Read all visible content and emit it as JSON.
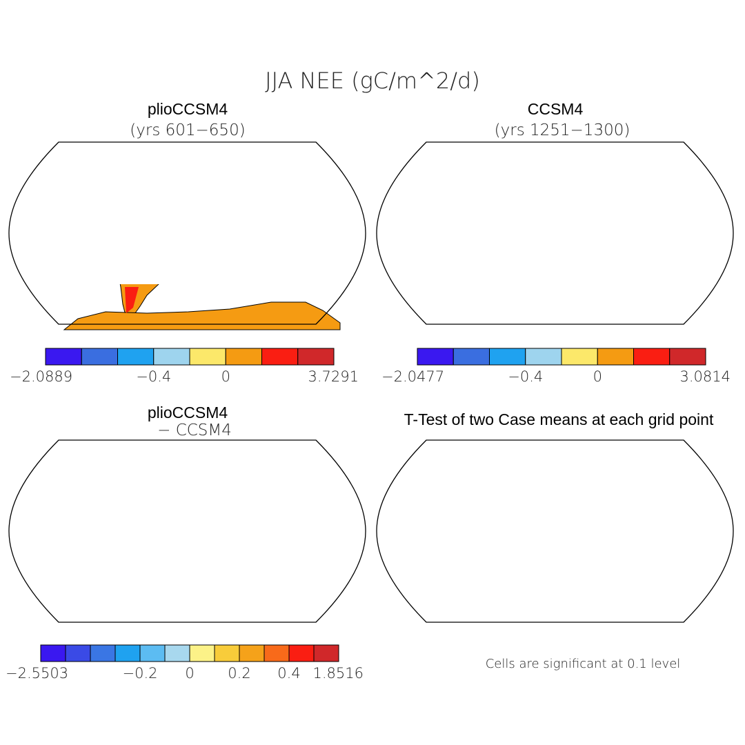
{
  "figure": {
    "title": "JJA NEE (gC/m^2/d)"
  },
  "panels": [
    {
      "title": "plioCCSM4",
      "subtitle": "(yrs 601−650)",
      "map_type": "nee"
    },
    {
      "title": "CCSM4",
      "subtitle": "(yrs 1251−1300)",
      "map_type": "nee"
    },
    {
      "title": "plioCCSM4",
      "subtitle": "− CCSM4",
      "map_type": "difference"
    },
    {
      "title": "T-Test of two Case means at each grid point",
      "subtitle": "",
      "map_type": "significance",
      "note": "Cells are significant at 0.1 level"
    }
  ],
  "colorbars": [
    {
      "colors": [
        "#3a18f0",
        "#3a6ee0",
        "#1fa2f0",
        "#9ed4ee",
        "#fce86a",
        "#f59b12",
        "#fa1e12",
        "#d0282a"
      ],
      "labels": [
        {
          "text": "−2.0889",
          "boundary": 0
        },
        {
          "text": "−0.4",
          "boundary": 3
        },
        {
          "text": "0",
          "boundary": 5
        },
        {
          "text": "3.7291",
          "boundary": 8
        }
      ]
    },
    {
      "colors": [
        "#3a18f0",
        "#3a6ee0",
        "#1fa2f0",
        "#9ed4ee",
        "#fce86a",
        "#f59b12",
        "#fa1e12",
        "#d0282a"
      ],
      "labels": [
        {
          "text": "−2.0477",
          "boundary": 0
        },
        {
          "text": "−0.4",
          "boundary": 3
        },
        {
          "text": "0",
          "boundary": 5
        },
        {
          "text": "3.0814",
          "boundary": 8
        }
      ]
    },
    {
      "colors": [
        "#3a18f0",
        "#3a4ae6",
        "#3a76e4",
        "#1fa2f0",
        "#5cbcf2",
        "#a8d8ee",
        "#fcf288",
        "#f8cc3a",
        "#f5a21a",
        "#f86a1a",
        "#fa1e12",
        "#d0282a"
      ],
      "labels": [
        {
          "text": "−2.5503",
          "boundary": 0
        },
        {
          "text": "−0.2",
          "boundary": 4
        },
        {
          "text": "0",
          "boundary": 6
        },
        {
          "text": "0.2",
          "boundary": 8
        },
        {
          "text": "0.4",
          "boundary": 10
        },
        {
          "text": "1.8516",
          "boundary": 12
        }
      ]
    }
  ],
  "legend_colors": {
    "ocean": "#ffffff",
    "outline": "#000000",
    "significant": "#ff0000",
    "antarctica_nee": "#f59b12",
    "antarctica_diff": "#fcf288"
  }
}
